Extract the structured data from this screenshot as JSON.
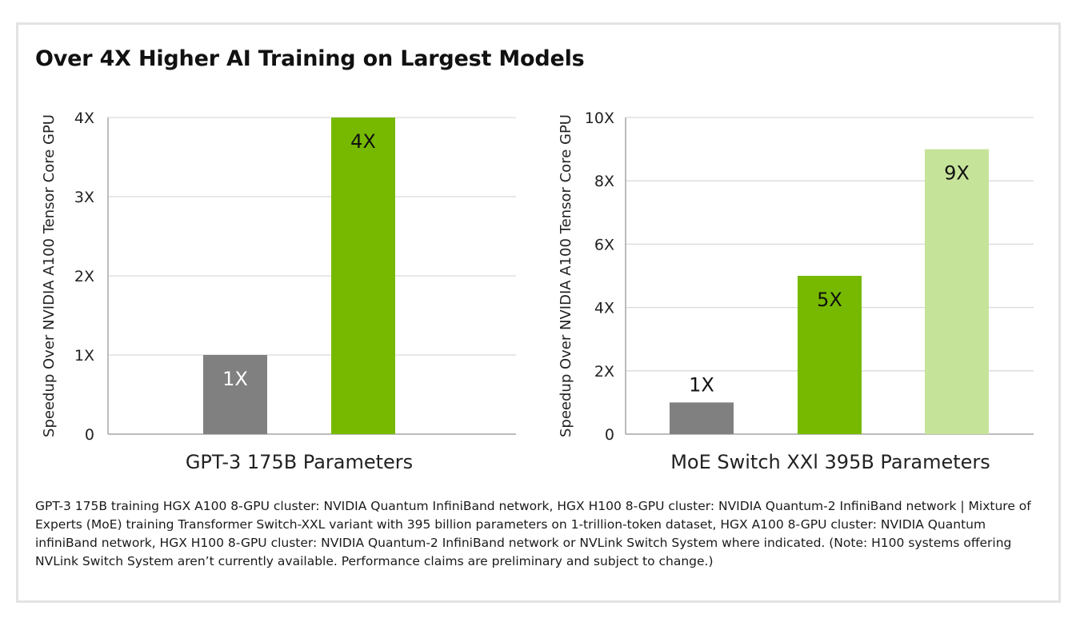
{
  "page_title": "Over 4X Higher AI Training on Largest Models",
  "footnote": "GPT-3 175B training HGX A100 8-GPU cluster: NVIDIA Quantum InfiniBand network, HGX H100 8-GPU cluster: NVIDIA Quantum-2 InfiniBand network | Mixture of Experts (MoE) training Transformer Switch-XXL variant with 395 billion parameters on 1-trillion-token dataset, HGX A100 8-GPU cluster: NVIDIA Quantum infiniBand network, HGX H100 8-GPU cluster: NVIDIA Quantum-2 InfiniBand network or NVLink Switch System where indicated. (Note: H100 systems offering NVLink Switch System aren’t currently available. Performance claims are preliminary and subject to change.)",
  "colors": {
    "gray": "#808080",
    "green": "#76b900",
    "light_green": "#c6e39a",
    "grid": "#d9d9d9",
    "axis": "#a6a6a6"
  },
  "chart_data": [
    {
      "type": "bar",
      "title": "",
      "ylabel": "Speedup Over NVIDIA A100 Tensor Core GPU",
      "xlabel": "GPT-3 175B Parameters",
      "ylim": [
        0,
        4
      ],
      "yticks": [
        0,
        1,
        2,
        3,
        4
      ],
      "ytick_labels": [
        "0",
        "1X",
        "2X",
        "3X",
        "4X"
      ],
      "grid": true,
      "bars": [
        {
          "value": 1,
          "label": "1X",
          "color": "#808080",
          "label_color": "#ffffff",
          "label_position": "inside"
        },
        {
          "value": 4,
          "label": "4X",
          "color": "#76b900",
          "label_color": "#111111",
          "label_position": "inside"
        }
      ]
    },
    {
      "type": "bar",
      "title": "",
      "ylabel": "Speedup Over NVIDIA A100 Tensor Core GPU",
      "xlabel": "MoE Switch XXl 395B Parameters",
      "ylim": [
        0,
        10
      ],
      "yticks": [
        0,
        2,
        4,
        6,
        8,
        10
      ],
      "ytick_labels": [
        "0",
        "2X",
        "4X",
        "6X",
        "8X",
        "10X"
      ],
      "grid": true,
      "bars": [
        {
          "value": 1,
          "label": "1X",
          "color": "#808080",
          "label_color": "#111111",
          "label_position": "above"
        },
        {
          "value": 5,
          "label": "5X",
          "color": "#76b900",
          "label_color": "#111111",
          "label_position": "inside"
        },
        {
          "value": 9,
          "label": "9X",
          "color": "#c6e39a",
          "label_color": "#111111",
          "label_position": "inside"
        }
      ]
    }
  ]
}
